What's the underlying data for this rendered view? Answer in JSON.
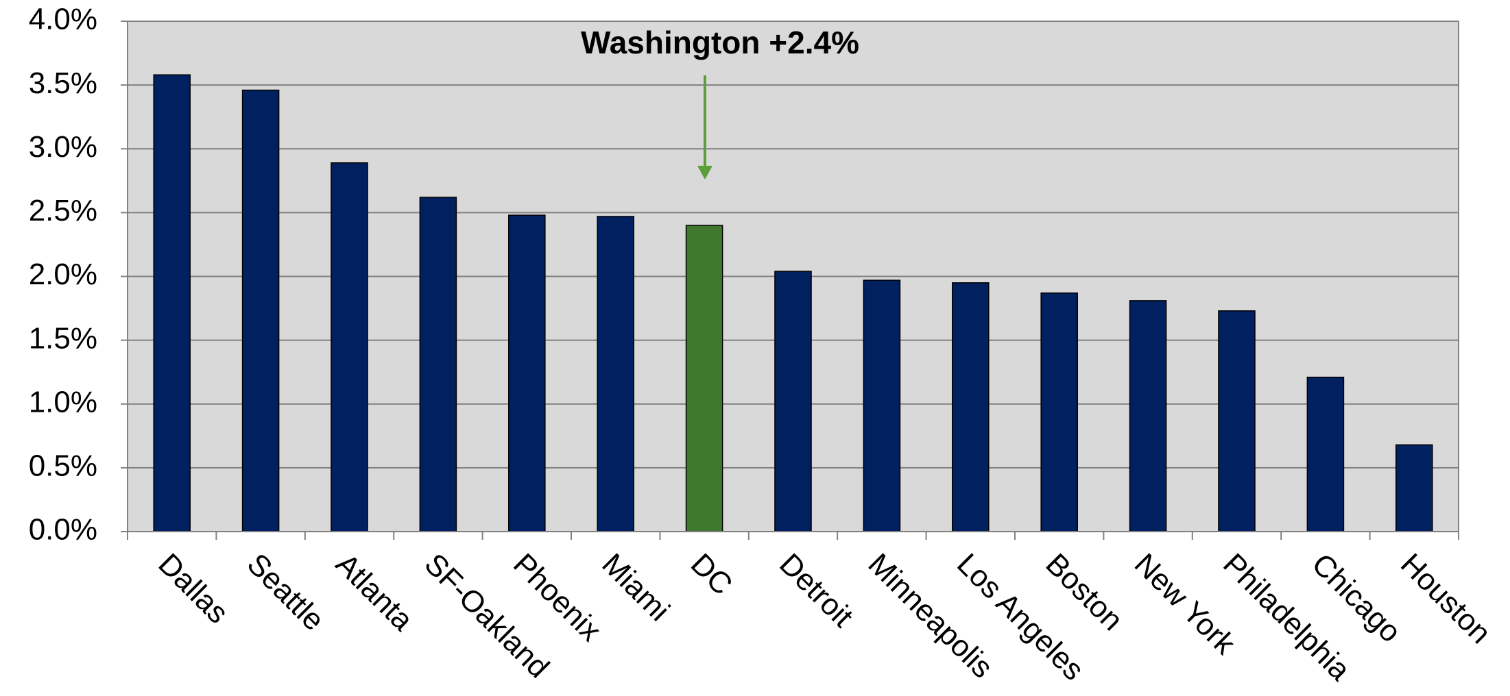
{
  "chart_data": {
    "type": "bar",
    "annotation": {
      "text": "Washington +2.4%",
      "color": "#5b9e3a"
    },
    "categories": [
      "Dallas",
      "Seattle",
      "Atlanta",
      "SF-Oakland",
      "Phoenix",
      "Miami",
      "DC",
      "Detroit",
      "Minneapolis",
      "Los Angeles",
      "Boston",
      "New York",
      "Philadelphia",
      "Chicago",
      "Houston"
    ],
    "values": [
      3.58,
      3.46,
      2.89,
      2.62,
      2.48,
      2.47,
      2.4,
      2.04,
      1.97,
      1.95,
      1.87,
      1.81,
      1.73,
      1.21,
      0.68
    ],
    "colors": [
      "#002060",
      "#002060",
      "#002060",
      "#002060",
      "#002060",
      "#002060",
      "#41782f",
      "#002060",
      "#002060",
      "#002060",
      "#002060",
      "#002060",
      "#002060",
      "#002060",
      "#002060"
    ],
    "ylim": [
      0,
      4
    ],
    "yticks": [
      {
        "value": 0,
        "label": "0.0%"
      },
      {
        "value": 0.5,
        "label": "0.5%"
      },
      {
        "value": 1,
        "label": "1.0%"
      },
      {
        "value": 1.5,
        "label": "1.5%"
      },
      {
        "value": 2,
        "label": "2.0%"
      },
      {
        "value": 2.5,
        "label": "2.5%"
      },
      {
        "value": 3,
        "label": "3.0%"
      },
      {
        "value": 3.5,
        "label": "3.5%"
      },
      {
        "value": 4,
        "label": "4.0%"
      }
    ],
    "grid": true
  }
}
